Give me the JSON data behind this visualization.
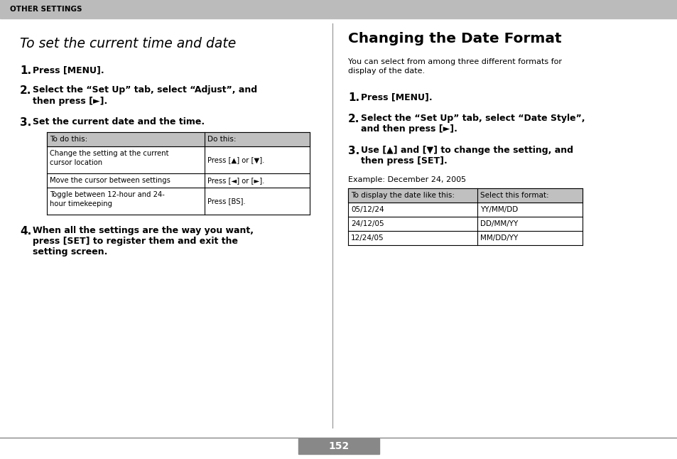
{
  "bg_color": "#ffffff",
  "header_bg": "#bbbbbb",
  "header_text": "OTHER SETTINGS",
  "header_text_color": "#000000",
  "left_title": "To set the current time and date",
  "right_title": "Changing the Date Format",
  "right_subtitle_line1": "You can select from among three different formats for",
  "right_subtitle_line2": "display of the date.",
  "left_steps": [
    {
      "num": "1.",
      "text": "Press [MENU]."
    },
    {
      "num": "2.",
      "text": "Select the “Set Up” tab, select “Adjust”, and\n    then press [►]."
    },
    {
      "num": "3.",
      "text": "Set the current date and the time."
    }
  ],
  "left_step4": {
    "num": "4.",
    "text": "When all the settings are the way you want,\n    press [SET] to register them and exit the\n    setting screen."
  },
  "right_steps": [
    {
      "num": "1.",
      "text": "Press [MENU]."
    },
    {
      "num": "2.",
      "text": "Select the “Set Up” tab, select “Date Style”,\n    and then press [►]."
    },
    {
      "num": "3.",
      "text": "Use [▲] and [▼] to change the setting, and\n    then press [SET]."
    }
  ],
  "right_example": "Example: December 24, 2005",
  "table1_header": [
    "To do this:",
    "Do this:"
  ],
  "table1_rows": [
    [
      "Change the setting at the current\ncursor location",
      "Press [▲] or [▼]."
    ],
    [
      "Move the cursor between settings",
      "Press [◄] or [►]."
    ],
    [
      "Toggle between 12-hour and 24-\nhour timekeeping",
      "Press [BS]."
    ]
  ],
  "table2_header": [
    "To display the date like this:",
    "Select this format:"
  ],
  "table2_rows": [
    [
      "05/12/24",
      "YY/MM/DD"
    ],
    [
      "24/12/05",
      "DD/MM/YY"
    ],
    [
      "12/24/05",
      "MM/DD/YY"
    ]
  ],
  "page_number": "152",
  "table_header_bg": "#c0c0c0",
  "divider_color": "#999999",
  "bottom_line_color": "#888888",
  "page_box_color": "#888888"
}
